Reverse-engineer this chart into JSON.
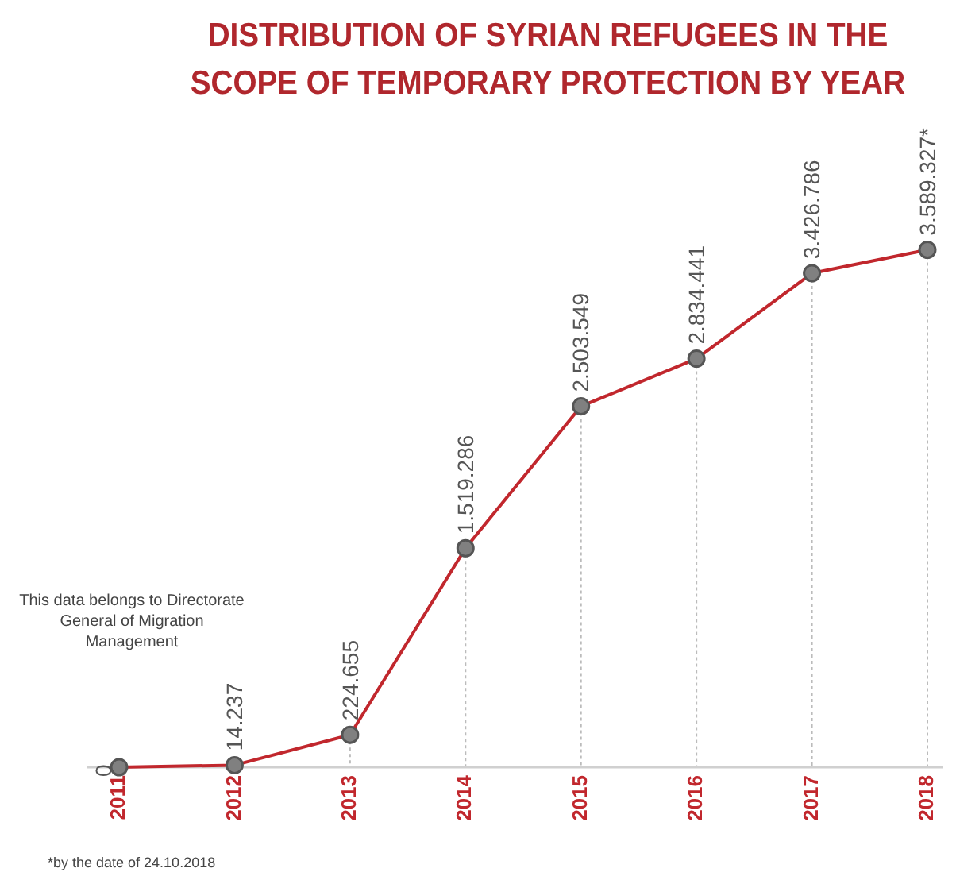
{
  "chart_data": {
    "type": "line",
    "title": "DISTRIBUTION OF SYRIAN REFUGEES IN THE SCOPE OF TEMPORARY PROTECTION BY YEAR",
    "categories": [
      "2011",
      "2012",
      "2013",
      "2014",
      "2015",
      "2016",
      "2017",
      "2018"
    ],
    "values": [
      0,
      14237,
      224655,
      1519286,
      2503549,
      2834441,
      3426786,
      3589327
    ],
    "value_labels": [
      "0",
      "14.237",
      "224.655",
      "1.519.286",
      "2.503.549",
      "2.834.441",
      "3.426.786",
      "3.589.327*"
    ],
    "color": "#c1272d",
    "marker": "circle",
    "tick_labels": "x",
    "grid": "x",
    "annotations": [
      "This data belongs to Directorate General of Migration Management",
      "*by the date of  24.10.2018"
    ]
  }
}
